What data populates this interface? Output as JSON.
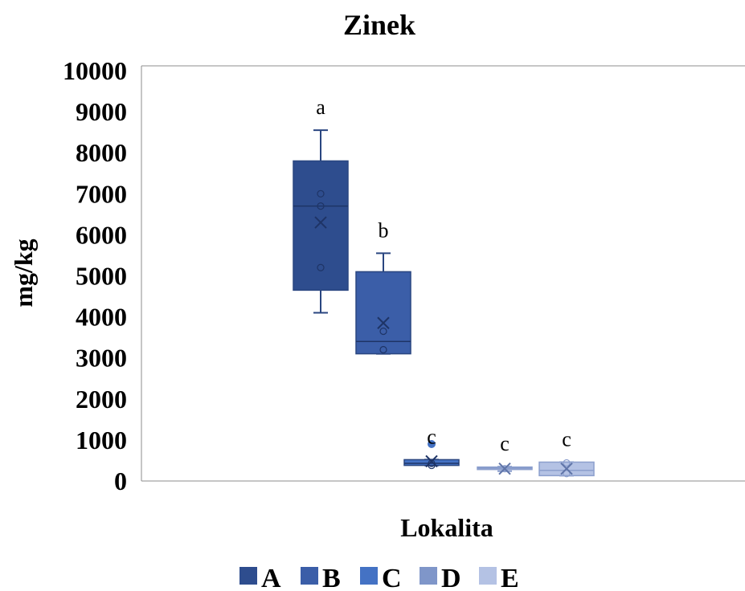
{
  "chart_data": {
    "type": "box",
    "title": "Zinek",
    "xlabel": "Lokalita",
    "ylabel": "mg/kg",
    "ylim": [
      0,
      10000
    ],
    "yticks": [
      0,
      1000,
      2000,
      3000,
      4000,
      5000,
      6000,
      7000,
      8000,
      9000,
      10000
    ],
    "grid": false,
    "legend_position": "bottom",
    "series": [
      {
        "name": "A",
        "color": "#2E4D8E",
        "min": 4100,
        "q1": 4650,
        "median": 6700,
        "q3": 7800,
        "max": 8550,
        "mean": 6300,
        "points": [
          5200,
          6700,
          7000
        ],
        "outliers": [],
        "letter": "a"
      },
      {
        "name": "B",
        "color": "#3B5EA8",
        "min": 3100,
        "q1": 3100,
        "median": 3400,
        "q3": 5100,
        "max": 5550,
        "mean": 3850,
        "points": [
          3200,
          3650
        ],
        "outliers": [],
        "letter": "b"
      },
      {
        "name": "C",
        "color": "#4472C4",
        "min": 380,
        "q1": 380,
        "median": 430,
        "q3": 520,
        "max": 520,
        "mean": 480,
        "points": [
          380,
          430
        ],
        "outliers": [
          900
        ],
        "letter": "c"
      },
      {
        "name": "D",
        "color": "#7F96C9",
        "min": 240,
        "q1": 280,
        "median": 300,
        "q3": 340,
        "max": 350,
        "mean": 300,
        "points": [
          300
        ],
        "outliers": [],
        "letter": "c"
      },
      {
        "name": "E",
        "color": "#B4C2E4",
        "min": 130,
        "q1": 130,
        "median": 260,
        "q3": 460,
        "max": 460,
        "mean": 300,
        "points": [
          180,
          440
        ],
        "outliers": [],
        "letter": "c"
      }
    ]
  }
}
